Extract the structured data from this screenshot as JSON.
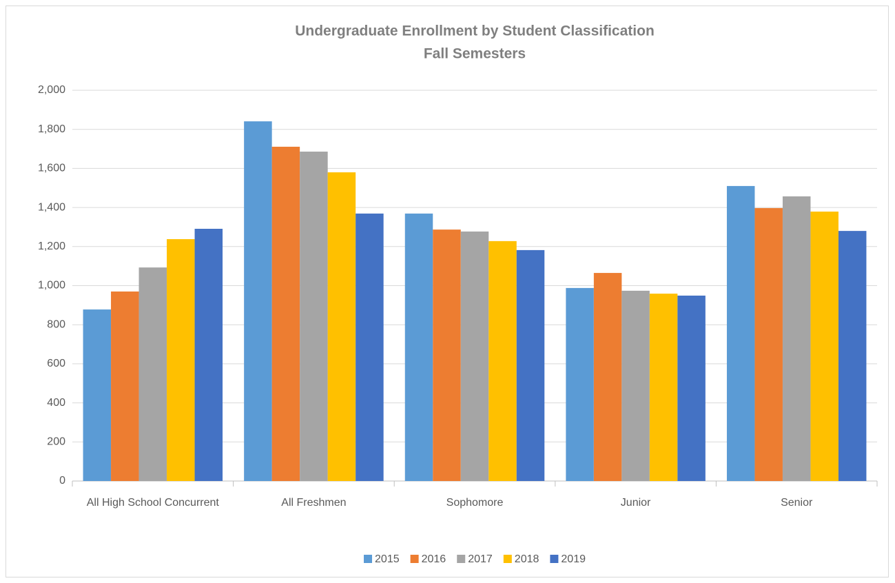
{
  "chart_data": {
    "type": "bar",
    "title": "Undergraduate Enrollment by Student Classification",
    "subtitle": "Fall Semesters",
    "categories": [
      "All High School Concurrent",
      "All Freshmen",
      "Sophomore",
      "Junior",
      "Senior"
    ],
    "series": [
      {
        "name": "2015",
        "color": "#5b9bd5",
        "values": [
          878,
          1841,
          1369,
          988,
          1510
        ]
      },
      {
        "name": "2016",
        "color": "#ed7d31",
        "values": [
          970,
          1711,
          1287,
          1065,
          1397
        ]
      },
      {
        "name": "2017",
        "color": "#a5a5a5",
        "values": [
          1093,
          1686,
          1277,
          974,
          1457
        ]
      },
      {
        "name": "2018",
        "color": "#ffc000",
        "values": [
          1238,
          1580,
          1228,
          959,
          1379
        ]
      },
      {
        "name": "2019",
        "color": "#4472c4",
        "values": [
          1291,
          1369,
          1182,
          949,
          1280
        ]
      }
    ],
    "ylim": [
      0,
      2000
    ],
    "yticks": [
      0,
      200,
      400,
      600,
      800,
      {
        "value": 1000,
        "label": "1,000"
      },
      {
        "value": 1200,
        "label": "1,200"
      },
      {
        "value": 1400,
        "label": "1,400"
      },
      {
        "value": 1600,
        "label": "1,600"
      },
      {
        "value": 1800,
        "label": "1,800"
      },
      {
        "value": 2000,
        "label": "2,000"
      }
    ],
    "grid": true,
    "legend": "bottom"
  }
}
